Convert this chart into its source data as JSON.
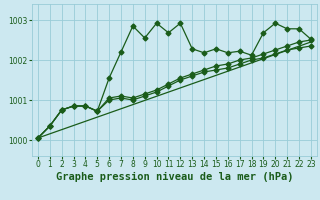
{
  "title": "Graphe pression niveau de la mer (hPa)",
  "bg_color": "#cce8f0",
  "grid_color": "#99ccd8",
  "line_color": "#1a5c1a",
  "xlim": [
    -0.5,
    23.5
  ],
  "ylim": [
    999.6,
    1003.4
  ],
  "yticks": [
    1000,
    1001,
    1002,
    1003
  ],
  "xticks": [
    0,
    1,
    2,
    3,
    4,
    5,
    6,
    7,
    8,
    9,
    10,
    11,
    12,
    13,
    14,
    15,
    16,
    17,
    18,
    19,
    20,
    21,
    22,
    23
  ],
  "series1": [
    1000.05,
    1000.35,
    1000.75,
    1000.85,
    1000.85,
    1000.72,
    1001.55,
    1002.2,
    1002.85,
    1002.55,
    1002.92,
    1002.68,
    1002.92,
    1002.28,
    1002.18,
    1002.28,
    1002.18,
    1002.22,
    1002.12,
    1002.68,
    1002.92,
    1002.78,
    1002.78,
    1002.52
  ],
  "series2": [
    1000.05,
    1000.35,
    1000.75,
    1000.85,
    1000.85,
    1000.72,
    1001.05,
    1001.1,
    1001.05,
    1001.15,
    1001.25,
    1001.4,
    1001.55,
    1001.65,
    1001.75,
    1001.85,
    1001.9,
    1002.0,
    1002.05,
    1002.15,
    1002.25,
    1002.35,
    1002.45,
    1002.5
  ],
  "series3": [
    1000.05,
    1000.35,
    1000.75,
    1000.85,
    1000.85,
    1000.72,
    1001.0,
    1001.05,
    1001.0,
    1001.1,
    1001.2,
    1001.35,
    1001.5,
    1001.6,
    1001.7,
    1001.75,
    1001.8,
    1001.9,
    1002.0,
    1002.05,
    1002.15,
    1002.25,
    1002.3,
    1002.35
  ],
  "series4_x": [
    0,
    23
  ],
  "series4_y": [
    1000.05,
    1002.45
  ],
  "marker": "D",
  "markersize": 2.5,
  "linewidth": 0.9,
  "title_fontsize": 7.5,
  "tick_fontsize": 5.5
}
